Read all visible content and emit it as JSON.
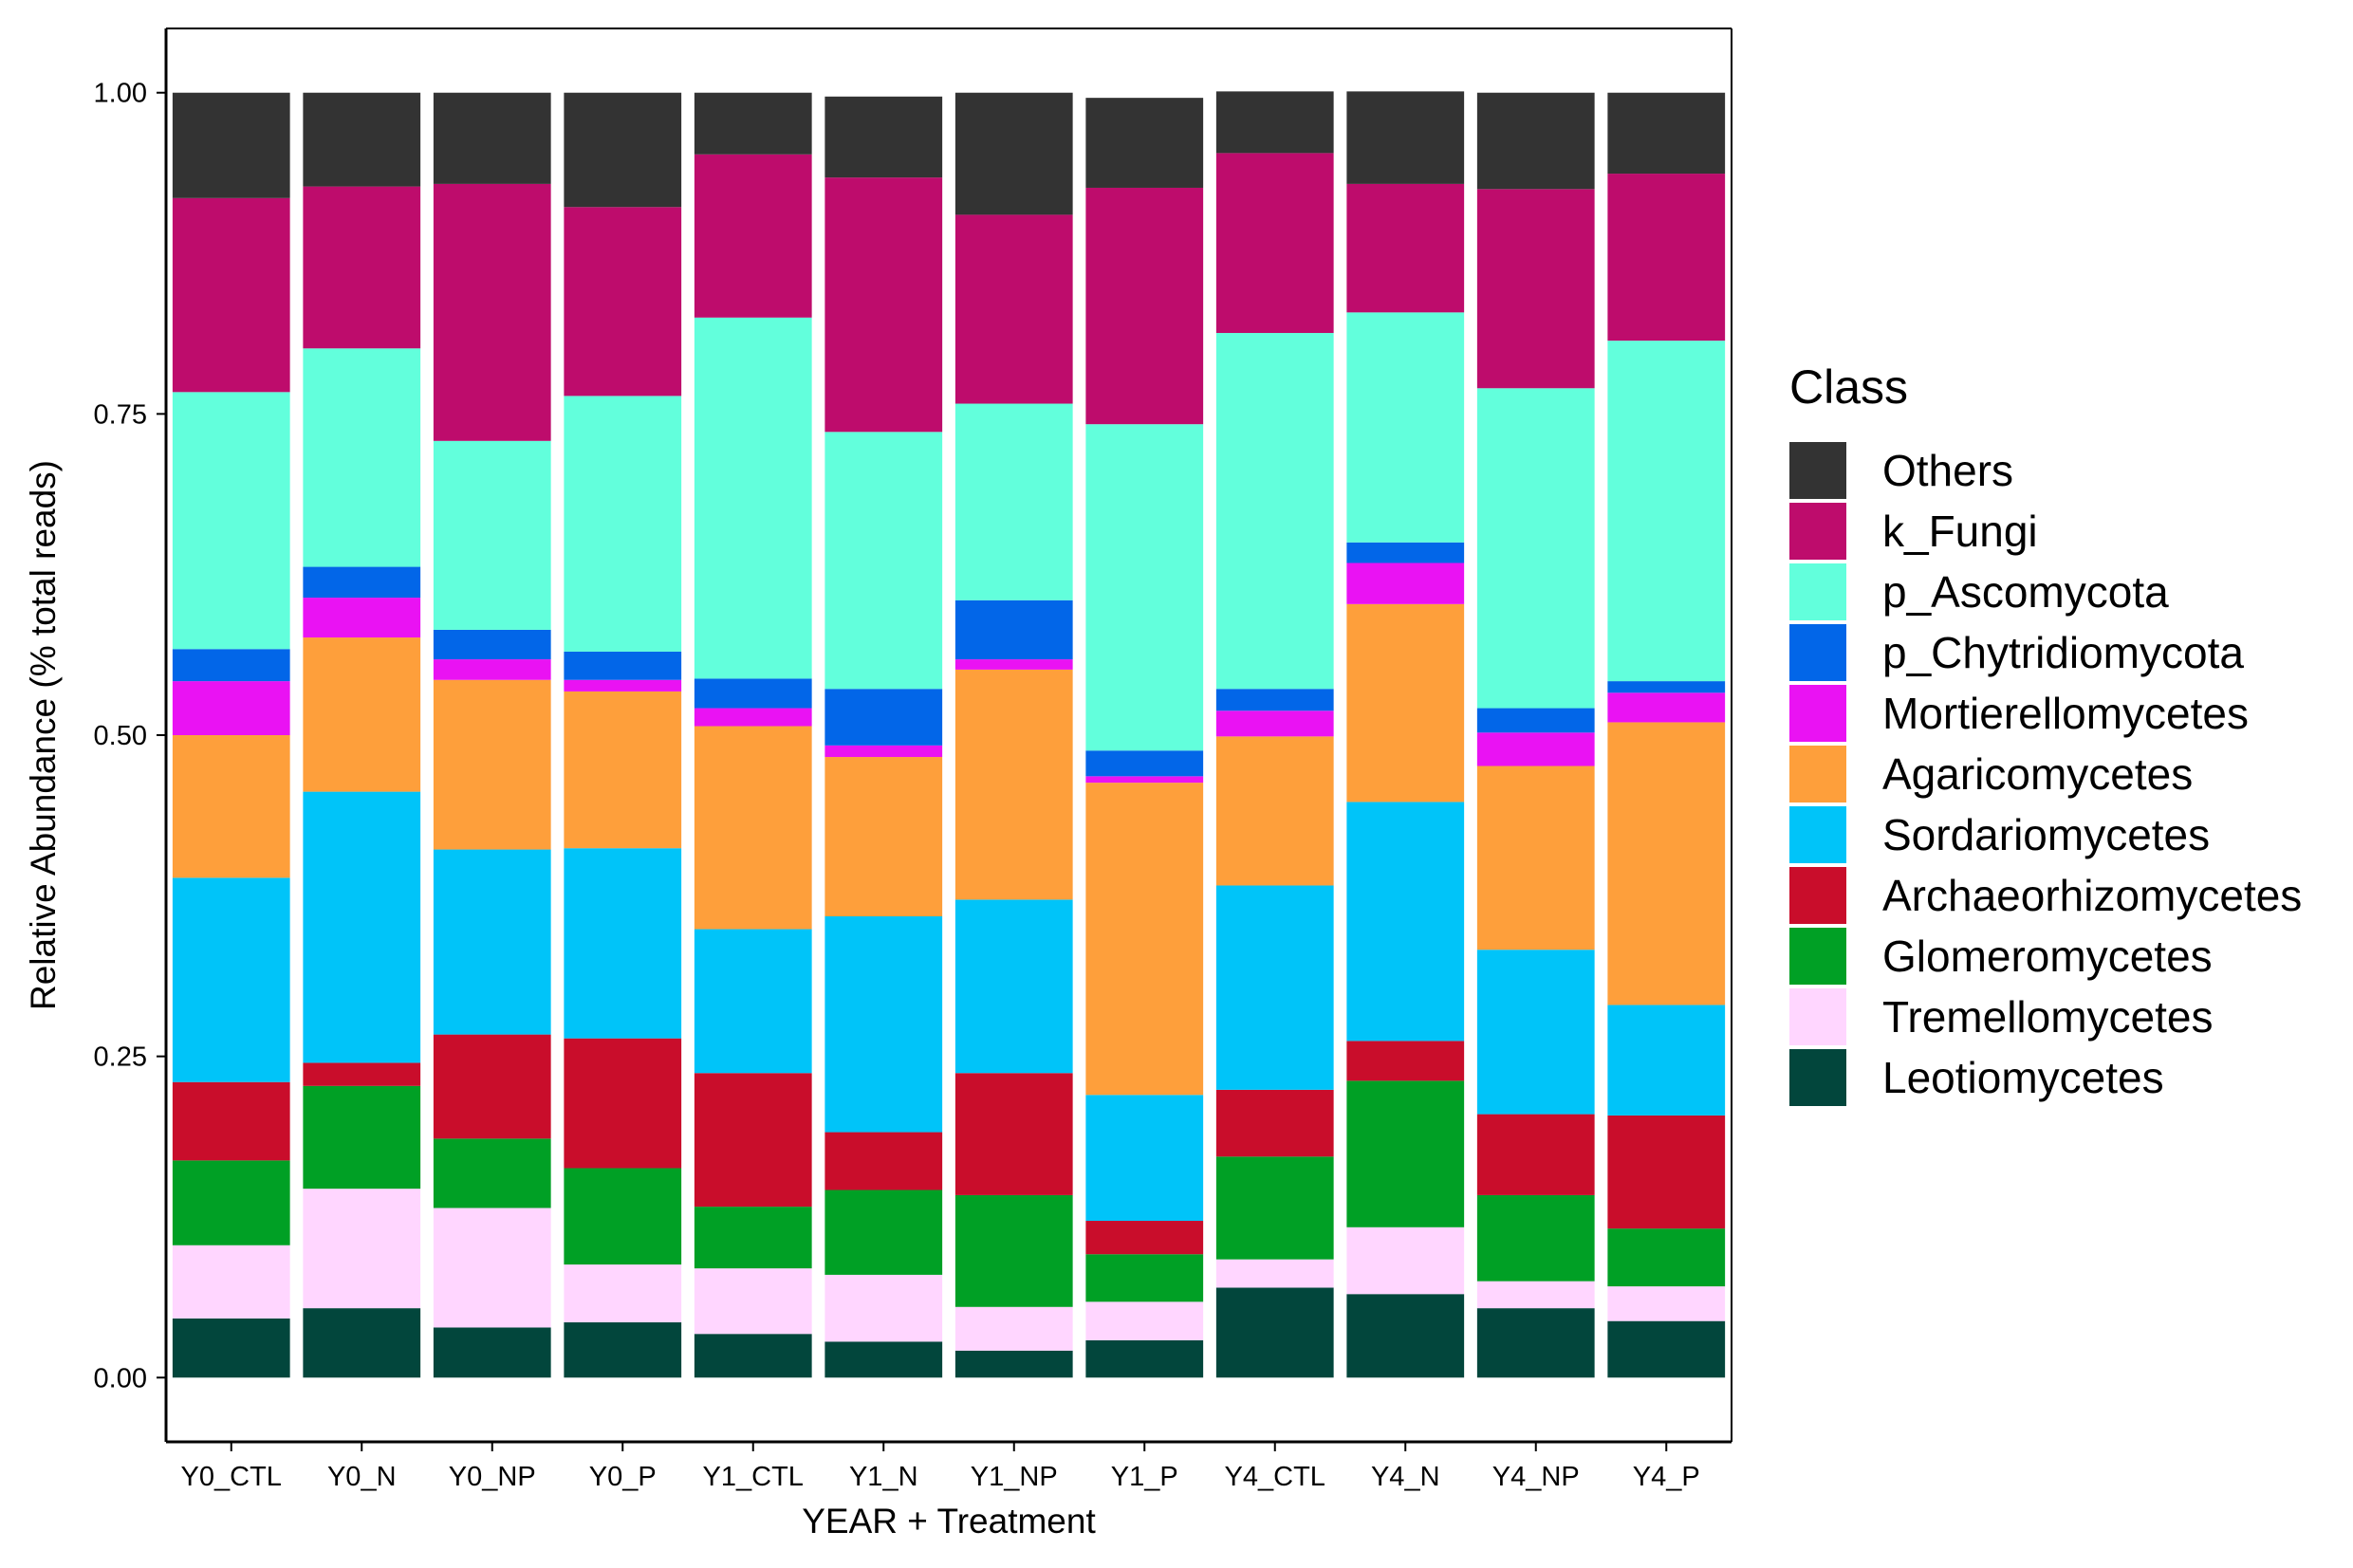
{
  "chart_data": {
    "type": "bar",
    "stacked": true,
    "xlabel": "YEAR + Treatment",
    "ylabel": "Relative Abundance (% total reads)",
    "ylim": [
      -0.05,
      1.05
    ],
    "yticks": [
      0,
      0.25,
      0.5,
      0.75,
      1
    ],
    "ytick_labels": [
      "0.00",
      "0.25",
      "0.50",
      "0.75",
      "1.00"
    ],
    "grid": false,
    "legend_position": "right",
    "legend_title": "Class",
    "categories": [
      "Y0_CTL",
      "Y0_N",
      "Y0_NP",
      "Y0_P",
      "Y1_CTL",
      "Y1_N",
      "Y1_NP",
      "Y1_P",
      "Y4_CTL",
      "Y4_N",
      "Y4_NP",
      "Y4_P"
    ],
    "series": [
      {
        "name": "Others",
        "color": "#333333",
        "values": [
          0.082,
          0.073,
          0.071,
          0.089,
          0.048,
          0.063,
          0.095,
          0.07,
          0.048,
          0.072,
          0.075,
          0.063
        ]
      },
      {
        "name": "k_Fungi",
        "color": "#BE0C6C",
        "values": [
          0.151,
          0.126,
          0.2,
          0.147,
          0.127,
          0.198,
          0.147,
          0.184,
          0.14,
          0.1,
          0.155,
          0.13
        ]
      },
      {
        "name": "p_Ascomycota",
        "color": "#62FFDC",
        "values": [
          0.2,
          0.17,
          0.147,
          0.199,
          0.281,
          0.2,
          0.153,
          0.254,
          0.277,
          0.179,
          0.249,
          0.265
        ]
      },
      {
        "name": "p_Chytridiomycota",
        "color": "#0266E8",
        "values": [
          0.025,
          0.024,
          0.023,
          0.022,
          0.023,
          0.044,
          0.046,
          0.02,
          0.017,
          0.016,
          0.019,
          0.009
        ]
      },
      {
        "name": "Mortierellomycetes",
        "color": "#EA12F3",
        "values": [
          0.042,
          0.031,
          0.016,
          0.009,
          0.014,
          0.009,
          0.008,
          0.005,
          0.02,
          0.032,
          0.026,
          0.023
        ]
      },
      {
        "name": "Agaricomycetes",
        "color": "#FE9F3B",
        "values": [
          0.111,
          0.12,
          0.132,
          0.122,
          0.158,
          0.124,
          0.179,
          0.243,
          0.116,
          0.154,
          0.143,
          0.22
        ]
      },
      {
        "name": "Sordariomycetes",
        "color": "#00C4F9",
        "values": [
          0.159,
          0.211,
          0.144,
          0.148,
          0.112,
          0.168,
          0.135,
          0.098,
          0.159,
          0.186,
          0.128,
          0.086
        ]
      },
      {
        "name": "Archaeorhizomycetes",
        "color": "#C90D2B",
        "values": [
          0.061,
          0.018,
          0.081,
          0.101,
          0.104,
          0.045,
          0.095,
          0.026,
          0.052,
          0.031,
          0.063,
          0.088
        ]
      },
      {
        "name": "Glomeromycetes",
        "color": "#00A025",
        "values": [
          0.066,
          0.08,
          0.054,
          0.075,
          0.048,
          0.066,
          0.087,
          0.037,
          0.08,
          0.114,
          0.067,
          0.045
        ]
      },
      {
        "name": "Tremellomycetes",
        "color": "#FFD6FF",
        "values": [
          0.057,
          0.093,
          0.093,
          0.045,
          0.051,
          0.052,
          0.034,
          0.03,
          0.022,
          0.052,
          0.021,
          0.027
        ]
      },
      {
        "name": "Leotiomycetes",
        "color": "#02463C",
        "values": [
          0.046,
          0.054,
          0.039,
          0.043,
          0.034,
          0.028,
          0.021,
          0.029,
          0.07,
          0.065,
          0.054,
          0.044
        ]
      }
    ]
  }
}
